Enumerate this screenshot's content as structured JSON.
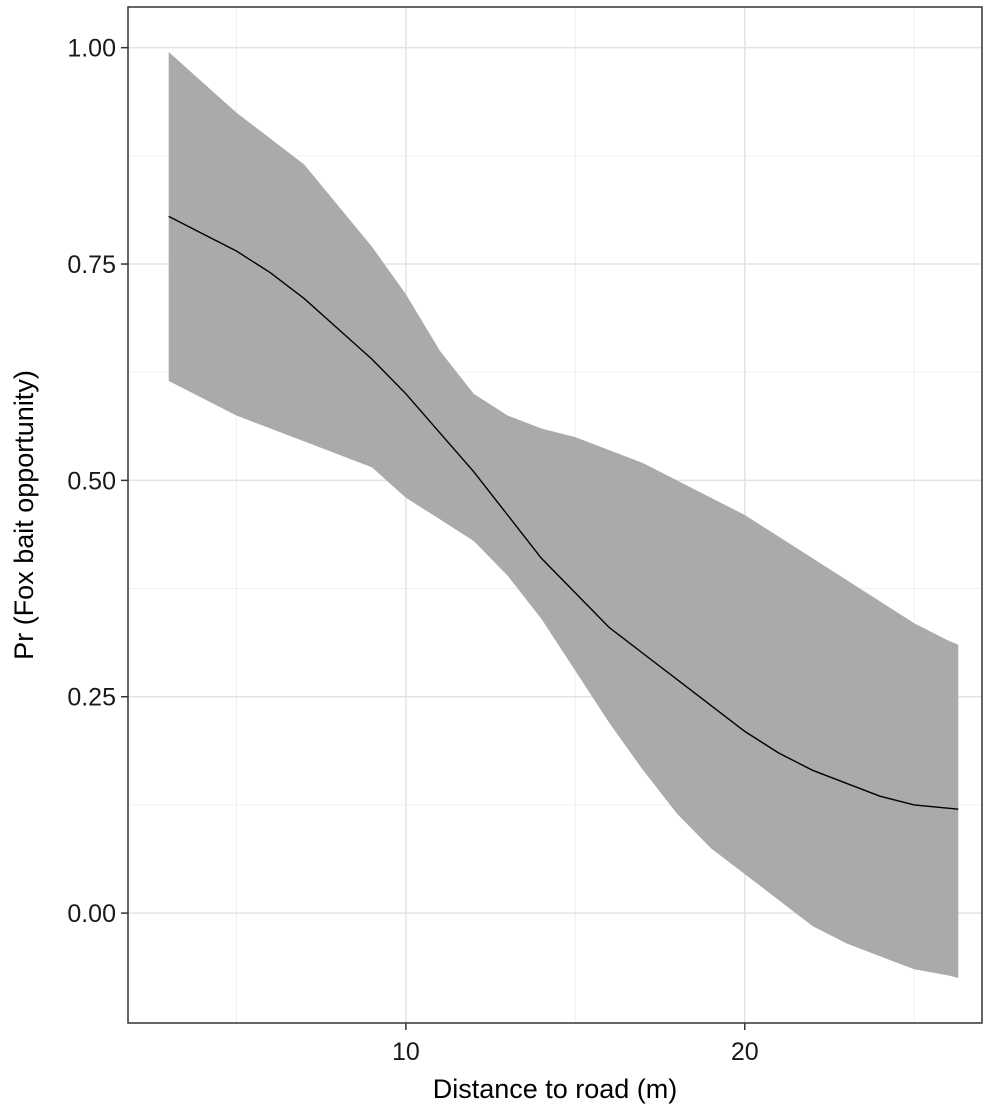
{
  "chart_data": {
    "type": "line",
    "title": "",
    "xlabel": "Distance to road (m)",
    "ylabel": "Pr (Fox bait opportunity)",
    "xlim": [
      1.8,
      27.0
    ],
    "ylim": [
      -0.127,
      1.047
    ],
    "x_ticks": [
      10,
      20
    ],
    "x_tick_labels": [
      "10",
      "20"
    ],
    "x_minor_ticks": [
      5,
      15,
      25
    ],
    "y_ticks": [
      0.0,
      0.25,
      0.5,
      0.75,
      1.0
    ],
    "y_tick_labels": [
      "0.00",
      "0.25",
      "0.50",
      "0.75",
      "1.00"
    ],
    "y_minor_ticks": [
      0.125,
      0.375,
      0.625,
      0.875
    ],
    "grid": true,
    "legend": "none",
    "series": [
      {
        "kind": "ribbon",
        "color": "#aaaaaa",
        "x": [
          3.0,
          5.0,
          7.0,
          9.0,
          10.0,
          11.0,
          12.0,
          13.0,
          14.0,
          15.0,
          16.0,
          17.0,
          18.0,
          19.0,
          20.0,
          21.0,
          22.0,
          23.0,
          24.0,
          25.0,
          26.0,
          26.3
        ],
        "upper": [
          0.995,
          0.925,
          0.865,
          0.77,
          0.715,
          0.65,
          0.6,
          0.575,
          0.56,
          0.55,
          0.535,
          0.52,
          0.5,
          0.48,
          0.46,
          0.435,
          0.41,
          0.385,
          0.36,
          0.335,
          0.315,
          0.31
        ],
        "lower": [
          0.615,
          0.575,
          0.545,
          0.515,
          0.48,
          0.455,
          0.43,
          0.39,
          0.34,
          0.28,
          0.22,
          0.165,
          0.115,
          0.075,
          0.045,
          0.015,
          -0.015,
          -0.035,
          -0.05,
          -0.065,
          -0.072,
          -0.075
        ]
      },
      {
        "kind": "line",
        "color": "#000000",
        "x": [
          3.0,
          4.0,
          5.0,
          6.0,
          7.0,
          8.0,
          9.0,
          10.0,
          11.0,
          12.0,
          13.0,
          14.0,
          15.0,
          16.0,
          17.0,
          18.0,
          19.0,
          20.0,
          21.0,
          22.0,
          23.0,
          24.0,
          25.0,
          26.3
        ],
        "y": [
          0.805,
          0.785,
          0.765,
          0.74,
          0.71,
          0.675,
          0.64,
          0.6,
          0.555,
          0.51,
          0.46,
          0.41,
          0.37,
          0.33,
          0.3,
          0.27,
          0.24,
          0.21,
          0.185,
          0.165,
          0.15,
          0.135,
          0.125,
          0.12
        ]
      }
    ]
  }
}
